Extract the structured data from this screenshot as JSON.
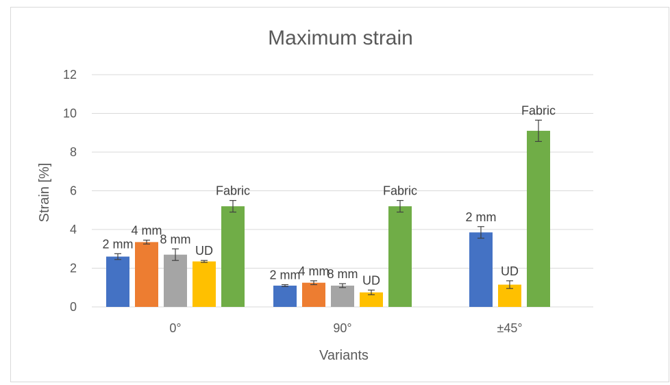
{
  "chart_data": {
    "type": "bar",
    "title": "Maximum strain",
    "xlabel": "Variants",
    "ylabel": "Strain [%]",
    "ylim": [
      0,
      12
    ],
    "yticks": [
      0,
      2,
      4,
      6,
      8,
      10,
      12
    ],
    "grid": true,
    "legend": "none",
    "categories": [
      "0°",
      "90°",
      "±45°"
    ],
    "series": [
      {
        "name": "2 mm",
        "color": "#4472C4",
        "values": [
          2.6,
          1.1,
          3.85
        ],
        "errors": [
          0.15,
          0.05,
          0.3
        ]
      },
      {
        "name": "4 mm",
        "color": "#ED7D31",
        "values": [
          3.35,
          1.25,
          null
        ],
        "errors": [
          0.1,
          0.1,
          null
        ]
      },
      {
        "name": "8 mm",
        "color": "#A5A5A5",
        "values": [
          2.7,
          1.1,
          null
        ],
        "errors": [
          0.3,
          0.1,
          null
        ]
      },
      {
        "name": "UD",
        "color": "#FFC000",
        "values": [
          2.35,
          0.75,
          1.15
        ],
        "errors": [
          0.05,
          0.12,
          0.2
        ]
      },
      {
        "name": "Fabric",
        "color": "#70AD47",
        "values": [
          5.2,
          5.2,
          9.1
        ],
        "errors": [
          0.3,
          0.3,
          0.55
        ]
      }
    ]
  }
}
